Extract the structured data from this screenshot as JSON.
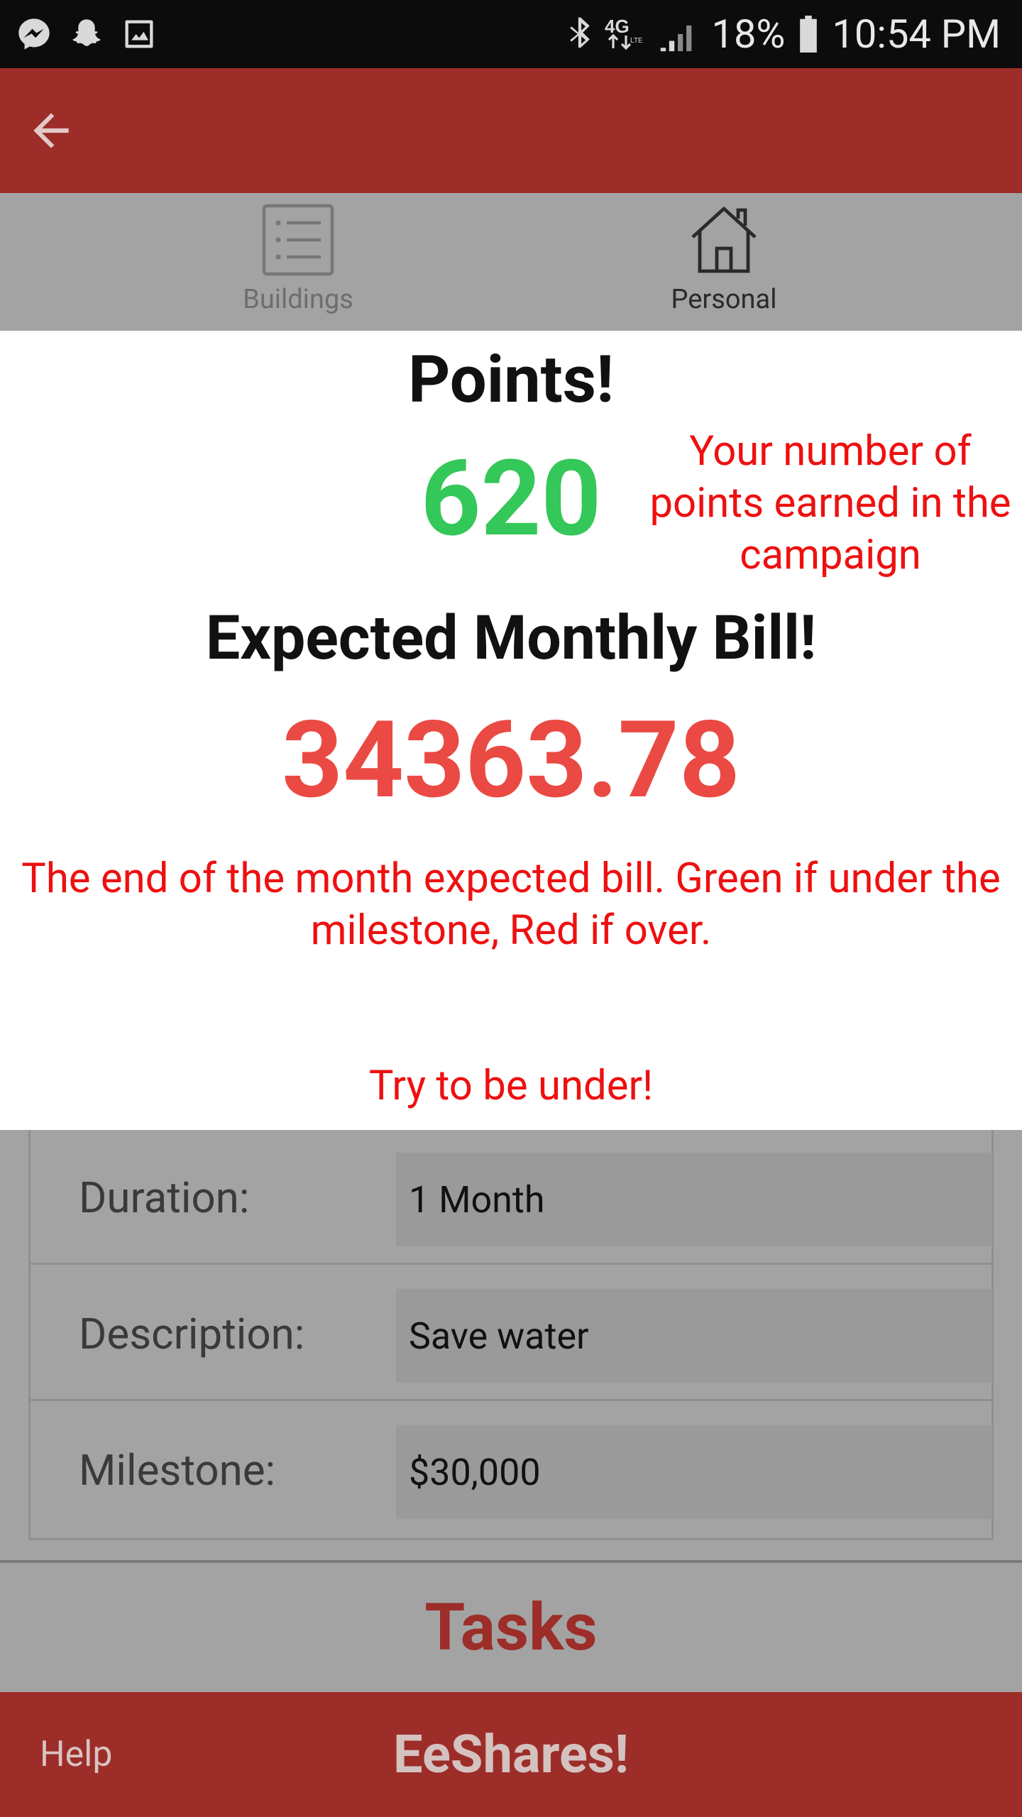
{
  "status_bar": {
    "battery_percent": "18%",
    "time": "10:54 PM",
    "icons": [
      "messenger-icon",
      "snapchat-icon",
      "gallery-icon",
      "bluetooth-icon",
      "lte-icon",
      "signal-icon",
      "battery-icon"
    ]
  },
  "colors": {
    "primary": "#9c2d28",
    "points_green": "#34c759",
    "bill_red": "#ea4a43",
    "hint_red": "#ee1010",
    "dim_background": "#a3a3a3"
  },
  "app_bar": {
    "back_icon": "back-arrow-icon"
  },
  "tabs": [
    {
      "label": "Buildings",
      "icon": "list-icon",
      "selected": false
    },
    {
      "label": "Personal",
      "icon": "home-icon",
      "selected": true
    }
  ],
  "overlay": {
    "points_title": "Points!",
    "points_value": "620",
    "points_hint": "Your number of points earned in the campaign",
    "bill_title": "Expected Monthly Bill!",
    "bill_value": "34363.78",
    "bill_hint": "The end of the month expected bill. Green if under the milestone, Red if over.",
    "bill_cta": "Try to be under!"
  },
  "info": [
    {
      "label": "Duration:",
      "value": "1 Month"
    },
    {
      "label": "Description:",
      "value": "Save water"
    },
    {
      "label": "Milestone:",
      "value": "$30,000"
    }
  ],
  "tasks": {
    "title": "Tasks"
  },
  "bottom_bar": {
    "help_label": "Help",
    "brand": "EeShares!"
  }
}
